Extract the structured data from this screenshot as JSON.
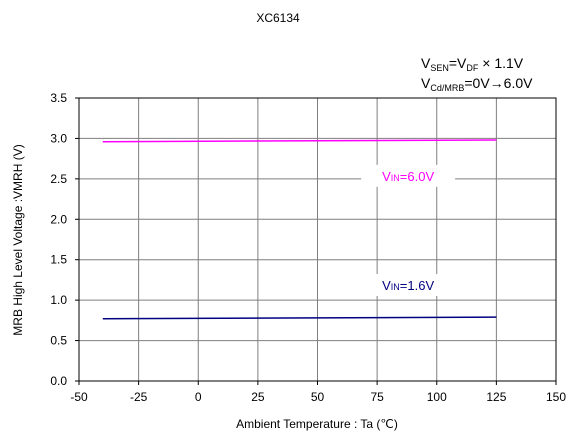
{
  "chart_data": {
    "type": "line",
    "title": "XC6134",
    "conditions": [
      {
        "v": "V",
        "sub": "SEN",
        "rest1": "=V",
        "sub2": "DF",
        "rest2": " × 1.1V"
      },
      {
        "v": "V",
        "sub": "Cd/MRB",
        "rest1": "=0V→6.0V"
      }
    ],
    "xlabel": "Ambient Temperature : Ta (℃)",
    "ylabel": "MRB High Level Voltage :VMRH (V)",
    "xlim": [
      -50,
      150
    ],
    "ylim": [
      0,
      3.5
    ],
    "xticks": [
      -50,
      -25,
      0,
      25,
      50,
      75,
      100,
      125,
      150
    ],
    "yticks": [
      0.0,
      0.5,
      1.0,
      1.5,
      2.0,
      2.5,
      3.0,
      3.5
    ],
    "grid": true,
    "series": [
      {
        "name": "VIN=6.0V",
        "label_main": "V",
        "label_sub": "IN",
        "label_rest": "=6.0V",
        "color": "#ff00ff",
        "x": [
          -40,
          125
        ],
        "y": [
          2.96,
          2.98
        ],
        "label_at": [
          88,
          2.5
        ]
      },
      {
        "name": "VIN=1.6V",
        "label_main": "V",
        "label_sub": "IN",
        "label_rest": "=1.6V",
        "color": "#000080",
        "x": [
          -40,
          125
        ],
        "y": [
          0.77,
          0.79
        ],
        "label_at": [
          88,
          1.15
        ]
      }
    ]
  }
}
